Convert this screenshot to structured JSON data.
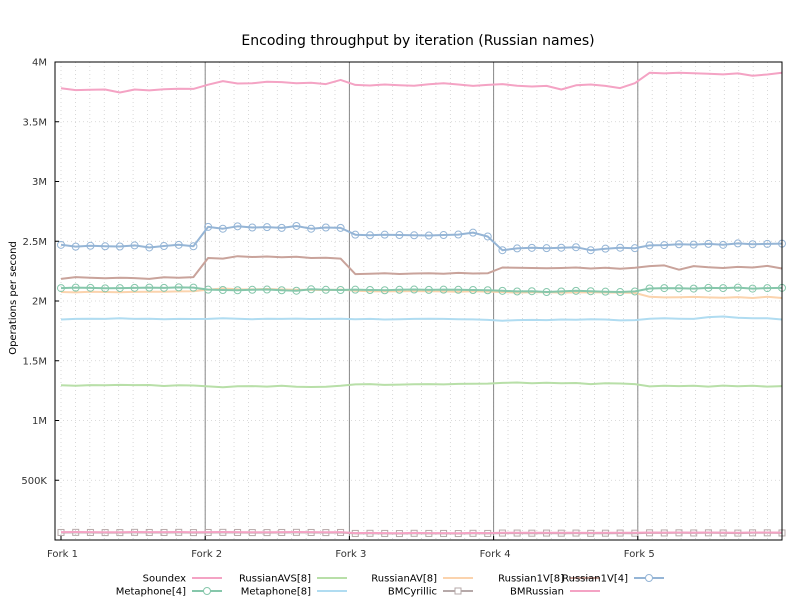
{
  "chart_data": {
    "type": "line",
    "title": "Encoding throughput by iteration (Russian names)",
    "ylabel": "Operations per second",
    "xlabel": "",
    "ylim": [
      0,
      4000000
    ],
    "yticks": [
      {
        "value": 500000,
        "label": "500K"
      },
      {
        "value": 1000000,
        "label": "1M"
      },
      {
        "value": 1500000,
        "label": "1.5M"
      },
      {
        "value": 2000000,
        "label": "2M"
      },
      {
        "value": 2500000,
        "label": "2.5M"
      },
      {
        "value": 3000000,
        "label": "3M"
      },
      {
        "value": 3500000,
        "label": "3.5M"
      },
      {
        "value": 4000000,
        "label": "4M"
      }
    ],
    "xlim": [
      0,
      50
    ],
    "xticks": [
      {
        "value": 0,
        "label": "Fork 1"
      },
      {
        "value": 10,
        "label": "Fork 2"
      },
      {
        "value": 20,
        "label": "Fork 3"
      },
      {
        "value": 30,
        "label": "Fork 4"
      },
      {
        "value": 40,
        "label": "Fork 5"
      }
    ],
    "fork_boundaries": [
      10,
      20,
      30,
      40
    ],
    "grid": true,
    "legend_position": "bottom",
    "series": [
      {
        "name": "Soundex",
        "color": "#f4a3c4",
        "marker": "none",
        "values": [
          3780000,
          3765000,
          3768000,
          3770000,
          3745000,
          3770000,
          3762000,
          3772000,
          3776000,
          3775000,
          3810000,
          3840000,
          3820000,
          3822000,
          3835000,
          3832000,
          3823000,
          3826000,
          3815000,
          3850000,
          3808000,
          3803000,
          3812000,
          3806000,
          3802000,
          3814000,
          3822000,
          3812000,
          3800000,
          3808000,
          3815000,
          3802000,
          3795000,
          3800000,
          3770000,
          3805000,
          3812000,
          3800000,
          3782000,
          3823000,
          3910000,
          3905000,
          3910000,
          3906000,
          3902000,
          3896000,
          3905000,
          3885000,
          3895000,
          3910000
        ]
      },
      {
        "name": "RussianAVS[8]",
        "color": "#b8dfa8",
        "marker": "none",
        "values": [
          1295000,
          1290000,
          1296000,
          1295000,
          1298000,
          1296000,
          1297000,
          1289000,
          1295000,
          1293000,
          1285000,
          1278000,
          1287000,
          1288000,
          1284000,
          1290000,
          1282000,
          1280000,
          1283000,
          1290000,
          1302000,
          1305000,
          1298000,
          1300000,
          1303000,
          1305000,
          1302000,
          1306000,
          1308000,
          1309000,
          1315000,
          1318000,
          1312000,
          1316000,
          1312000,
          1314000,
          1305000,
          1312000,
          1310000,
          1305000,
          1285000,
          1290000,
          1288000,
          1290000,
          1284000,
          1292000,
          1286000,
          1290000,
          1284000,
          1288000
        ]
      },
      {
        "name": "RussianAV[8]",
        "color": "#fbd3ad",
        "marker": "none",
        "values": [
          2075000,
          2072000,
          2078000,
          2075000,
          2074000,
          2076000,
          2078000,
          2077000,
          2080000,
          2082000,
          2095000,
          2105000,
          2098000,
          2097000,
          2100000,
          2096000,
          2094000,
          2093000,
          2091000,
          2095000,
          2085000,
          2082000,
          2080000,
          2081000,
          2083000,
          2082000,
          2080000,
          2078000,
          2081000,
          2079000,
          2075000,
          2070000,
          2074000,
          2073000,
          2070000,
          2072000,
          2074000,
          2071000,
          2070000,
          2068000,
          2035000,
          2030000,
          2032000,
          2034000,
          2030000,
          2028000,
          2033000,
          2025000,
          2035000,
          2025000
        ]
      },
      {
        "name": "Russian1V[8]",
        "color": "#c9a39b",
        "marker": "none",
        "values": [
          2185000,
          2200000,
          2195000,
          2190000,
          2195000,
          2192000,
          2185000,
          2198000,
          2195000,
          2200000,
          2360000,
          2355000,
          2375000,
          2368000,
          2372000,
          2366000,
          2370000,
          2360000,
          2362000,
          2355000,
          2225000,
          2228000,
          2232000,
          2226000,
          2230000,
          2232000,
          2228000,
          2235000,
          2230000,
          2232000,
          2280000,
          2278000,
          2276000,
          2274000,
          2276000,
          2280000,
          2272000,
          2278000,
          2270000,
          2278000,
          2292000,
          2298000,
          2262000,
          2292000,
          2282000,
          2276000,
          2285000,
          2280000,
          2294000,
          2272000
        ]
      },
      {
        "name": "Russian1V[4]",
        "color": "#95b5d6",
        "marker": "circle",
        "values": [
          2470000,
          2455000,
          2462000,
          2458000,
          2456000,
          2465000,
          2448000,
          2460000,
          2470000,
          2458000,
          2620000,
          2605000,
          2625000,
          2615000,
          2618000,
          2612000,
          2628000,
          2605000,
          2615000,
          2612000,
          2555000,
          2550000,
          2555000,
          2552000,
          2550000,
          2548000,
          2552000,
          2556000,
          2572000,
          2540000,
          2425000,
          2440000,
          2445000,
          2442000,
          2446000,
          2450000,
          2425000,
          2438000,
          2446000,
          2442000,
          2465000,
          2468000,
          2475000,
          2472000,
          2478000,
          2470000,
          2482000,
          2475000,
          2478000,
          2480000
        ]
      },
      {
        "name": "Metaphone[4]",
        "color": "#86c7ab",
        "marker": "circle",
        "values": [
          2108000,
          2112000,
          2110000,
          2106000,
          2108000,
          2110000,
          2112000,
          2110000,
          2114000,
          2112000,
          2095000,
          2092000,
          2090000,
          2094000,
          2096000,
          2090000,
          2086000,
          2098000,
          2094000,
          2092000,
          2095000,
          2092000,
          2090000,
          2094000,
          2096000,
          2093000,
          2095000,
          2094000,
          2092000,
          2090000,
          2085000,
          2080000,
          2082000,
          2075000,
          2080000,
          2085000,
          2082000,
          2078000,
          2075000,
          2080000,
          2105000,
          2108000,
          2106000,
          2104000,
          2110000,
          2108000,
          2112000,
          2104000,
          2108000,
          2110000
        ]
      },
      {
        "name": "Metaphone[8]",
        "color": "#b0dcf1",
        "marker": "none",
        "values": [
          1845000,
          1850000,
          1852000,
          1850000,
          1855000,
          1850000,
          1852000,
          1848000,
          1850000,
          1849000,
          1850000,
          1855000,
          1852000,
          1848000,
          1852000,
          1850000,
          1853000,
          1849000,
          1850000,
          1851000,
          1848000,
          1850000,
          1845000,
          1848000,
          1850000,
          1852000,
          1850000,
          1848000,
          1846000,
          1842000,
          1835000,
          1840000,
          1842000,
          1840000,
          1845000,
          1843000,
          1847000,
          1845000,
          1838000,
          1840000,
          1852000,
          1855000,
          1852000,
          1850000,
          1865000,
          1870000,
          1860000,
          1855000,
          1856000,
          1845000
        ]
      },
      {
        "name": "BMCyrillic",
        "color": "#b6a9a9",
        "marker": "square",
        "values": [
          63000,
          64000,
          63000,
          62000,
          62000,
          64000,
          63000,
          63000,
          64000,
          62000,
          63000,
          64000,
          63000,
          62000,
          62000,
          63000,
          64000,
          63000,
          62000,
          63000,
          55000,
          56000,
          55000,
          54000,
          56000,
          55000,
          55000,
          54000,
          56000,
          55000,
          58000,
          58000,
          57000,
          58000,
          57000,
          58000,
          56000,
          57000,
          58000,
          57000,
          60000,
          59000,
          60000,
          59000,
          60000,
          59000,
          58000,
          60000,
          60000,
          59000
        ]
      },
      {
        "name": "BMRussian",
        "color": "#f4a3c4",
        "marker": "none",
        "values": [
          66000,
          67000,
          66000,
          65000,
          65000,
          67000,
          66000,
          66000,
          67000,
          65000,
          66000,
          67000,
          66000,
          65000,
          65000,
          66000,
          67000,
          66000,
          65000,
          66000,
          58000,
          59000,
          58000,
          57000,
          59000,
          58000,
          58000,
          57000,
          59000,
          58000,
          61000,
          61000,
          60000,
          61000,
          60000,
          61000,
          59000,
          60000,
          61000,
          60000,
          63000,
          62000,
          63000,
          62000,
          63000,
          62000,
          61000,
          63000,
          63000,
          62000
        ]
      }
    ]
  }
}
